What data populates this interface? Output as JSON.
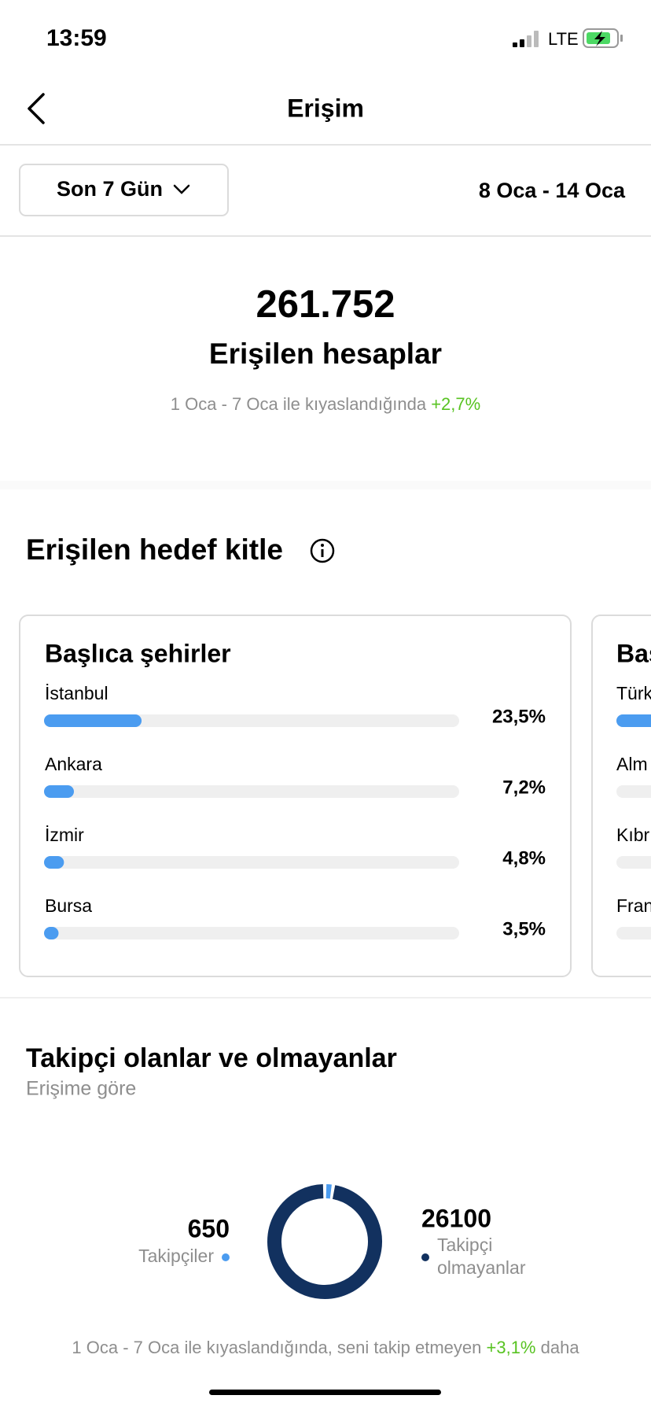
{
  "status_bar": {
    "time": "13:59",
    "network": "LTE"
  },
  "header": {
    "title": "Erişim"
  },
  "filter": {
    "period": "Son 7 Gün",
    "date_range": "8 Oca - 14 Oca"
  },
  "summary": {
    "value": "261.752",
    "label": "Erişilen hesaplar",
    "comparison": "1 Oca - 7 Oca ile kıyaslandığında",
    "change": "+2,7%"
  },
  "audience": {
    "title": "Erişilen hedef kitle",
    "cities": {
      "title": "Başlıca şehirler",
      "items": [
        {
          "name": "İstanbul",
          "value": 23.5,
          "label": "23,5%"
        },
        {
          "name": "Ankara",
          "value": 7.2,
          "label": "7,2%"
        },
        {
          "name": "İzmir",
          "value": 4.8,
          "label": "4,8%"
        },
        {
          "name": "Bursa",
          "value": 3.5,
          "label": "3,5%"
        }
      ]
    },
    "next_card": {
      "title": "Baş",
      "items": [
        "Türk",
        "Alm",
        "Kıbr",
        "Fran"
      ]
    }
  },
  "followers": {
    "title": "Takipçi olanlar ve olmayanlar",
    "subtitle": "Erişime göre",
    "followers": {
      "value": 650,
      "label": "Takipçiler"
    },
    "non_followers": {
      "value": 26100,
      "label_lines": [
        "Takipçi",
        "olmayanlar"
      ]
    },
    "footer": {
      "text": "1 Oca - 7 Oca ile kıyaslandığında, seni takip etmeyen",
      "change": "+3,1%",
      "suffix": "daha"
    }
  }
}
